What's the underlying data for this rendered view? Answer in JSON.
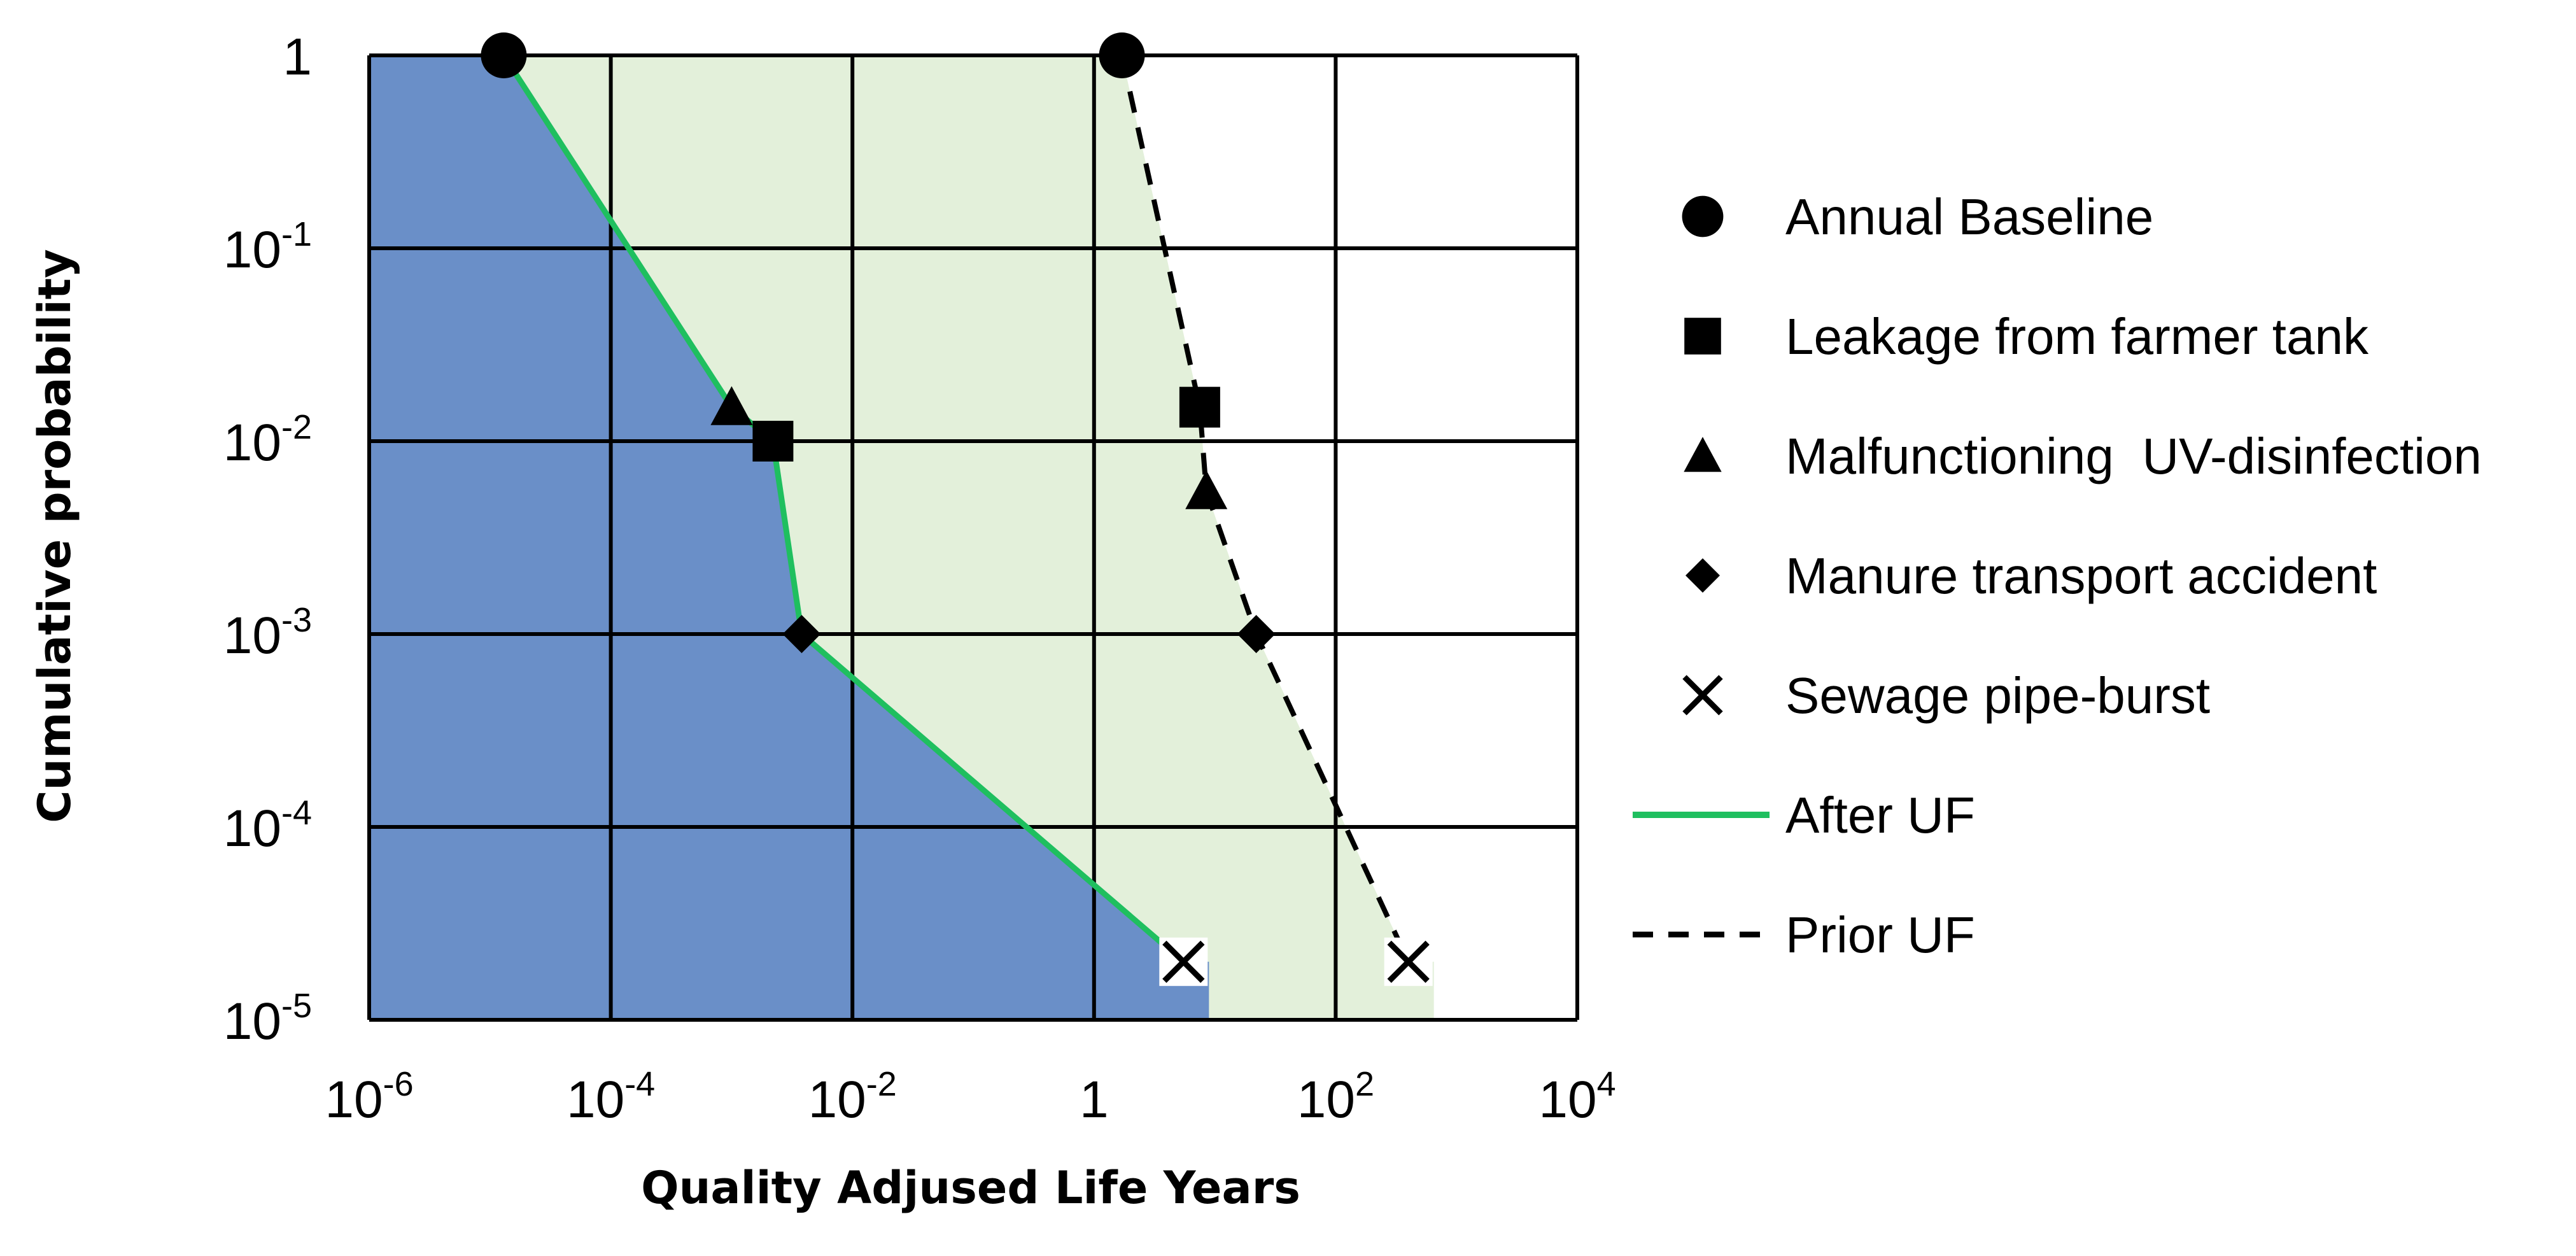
{
  "chart_data": {
    "type": "line",
    "title": "",
    "xlabel": "Quality Adjused Life Years",
    "ylabel": "Cumulative probability",
    "x_scale": "log",
    "y_scale": "log",
    "xlim": [
      1e-06,
      10000
    ],
    "ylim": [
      1e-05,
      1
    ],
    "grid": true,
    "legend_position": "right",
    "x_ticks": [
      {
        "value": 1e-06,
        "base": "10",
        "exp": "-6"
      },
      {
        "value": 0.0001,
        "base": "10",
        "exp": "-4"
      },
      {
        "value": 0.01,
        "base": "10",
        "exp": "-2"
      },
      {
        "value": 1,
        "base": "1",
        "exp": ""
      },
      {
        "value": 100,
        "base": "10",
        "exp": "2"
      },
      {
        "value": 10000,
        "base": "10",
        "exp": "4"
      }
    ],
    "y_ticks": [
      {
        "value": 1,
        "base": "1",
        "exp": ""
      },
      {
        "value": 0.1,
        "base": "10",
        "exp": "-1"
      },
      {
        "value": 0.01,
        "base": "10",
        "exp": "-2"
      },
      {
        "value": 0.001,
        "base": "10",
        "exp": "-3"
      },
      {
        "value": 0.0001,
        "base": "10",
        "exp": "-4"
      },
      {
        "value": 1e-05,
        "base": "10",
        "exp": "-5"
      }
    ],
    "series": [
      {
        "name": "After UF",
        "style": "solid",
        "color": "#1FBF5F",
        "fill_color": "#6A8FC8",
        "points": [
          {
            "x": 1.3e-05,
            "y": 1,
            "marker": "circle"
          },
          {
            "x": 0.001,
            "y": 0.015,
            "marker": "triangle"
          },
          {
            "x": 0.0022,
            "y": 0.01,
            "marker": "square"
          },
          {
            "x": 0.0038,
            "y": 0.001,
            "marker": "diamond"
          },
          {
            "x": 5.5,
            "y": 2e-05,
            "marker": "cross"
          }
        ]
      },
      {
        "name": "Prior UF",
        "style": "dashed",
        "color": "#000000",
        "fill_color": "#E3F0DA",
        "points": [
          {
            "x": 1.7,
            "y": 1,
            "marker": "circle"
          },
          {
            "x": 7.5,
            "y": 0.015,
            "marker": "square"
          },
          {
            "x": 8.5,
            "y": 0.0055,
            "marker": "triangle"
          },
          {
            "x": 22,
            "y": 0.001,
            "marker": "diamond"
          },
          {
            "x": 400,
            "y": 2e-05,
            "marker": "cross"
          }
        ]
      }
    ],
    "legend": [
      {
        "label": "Annual Baseline",
        "symbol": "circle"
      },
      {
        "label": "Leakage from farmer tank",
        "symbol": "square"
      },
      {
        "label": "Malfunctioning  UV-disinfection",
        "symbol": "triangle"
      },
      {
        "label": "Manure transport accident",
        "symbol": "diamond"
      },
      {
        "label": "Sewage pipe-burst",
        "symbol": "cross"
      },
      {
        "label": "After UF",
        "symbol": "solid-line"
      },
      {
        "label": "Prior UF",
        "symbol": "dashed-line"
      }
    ]
  }
}
